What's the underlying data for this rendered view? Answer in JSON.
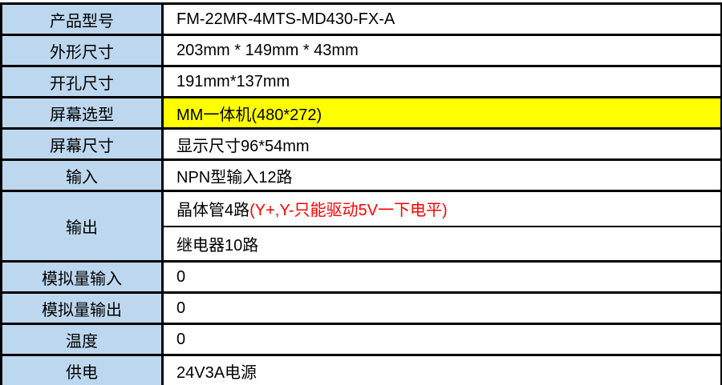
{
  "table": {
    "colors": {
      "label_bg": "#BDD7EE",
      "highlight_bg": "#FFFF00",
      "warning_text": "#FF0000",
      "border": "#000000",
      "cell_bg": "#FFFFFF"
    },
    "rows": [
      {
        "label": "产品型号",
        "value": "FM-22MR-4MTS-MD430-FX-A"
      },
      {
        "label": "外形尺寸",
        "value": "203mm * 149mm * 43mm"
      },
      {
        "label": "开孔尺寸",
        "value": "191mm*137mm"
      },
      {
        "label": "屏幕选型",
        "value": "MM一体机(480*272)",
        "highlighted": true
      },
      {
        "label": "屏幕尺寸",
        "value": "显示尺寸96*54mm"
      },
      {
        "label": "输入",
        "value": "NPN型输入12路"
      },
      {
        "label": "输出",
        "value_main": "晶体管4路",
        "value_warning": "(Y+,Y-只能驱动5V一下电平)",
        "value_line2": "继电器10路"
      },
      {
        "label": "模拟量输入",
        "value": "0"
      },
      {
        "label": "模拟量输出",
        "value": "0"
      },
      {
        "label": "温度",
        "value": "0"
      },
      {
        "label": "供电",
        "value": "24V3A电源"
      }
    ]
  }
}
